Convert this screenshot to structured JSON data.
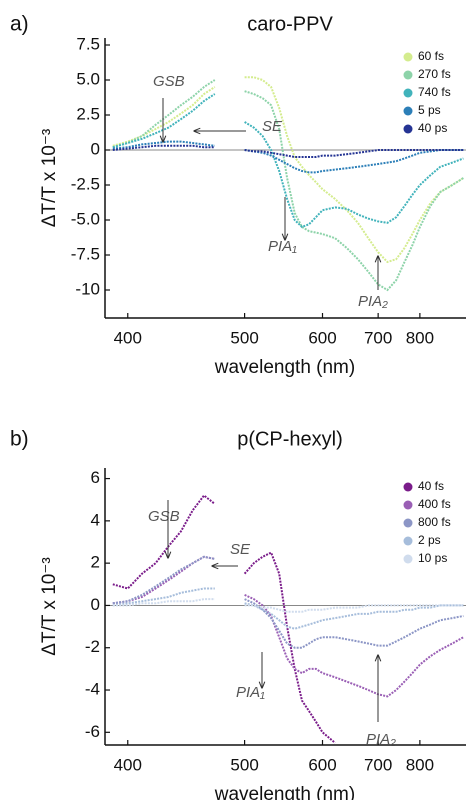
{
  "chart_data": [
    {
      "type": "line",
      "label": "a)",
      "title": "caro-PPV",
      "x_label": "wavelength (nm)",
      "y_label": "ΔT/T x 10⁻³",
      "xscale": "reciprocal",
      "xlim": [
        385,
        950
      ],
      "xticks": [
        400,
        500,
        600,
        700,
        800
      ],
      "ylim": [
        -12,
        8
      ],
      "yticks": [
        7.5,
        {
          "value": 5,
          "label": "5.0"
        },
        2.5,
        0,
        -2.5,
        {
          "value": -5,
          "label": "-5.0"
        },
        -7.5,
        -10
      ],
      "legend": "top-right",
      "zero_line": true,
      "annotations": [
        "GSB",
        "SE",
        "PIA₁",
        "PIA₂"
      ],
      "x": [
        390,
        400,
        410,
        420,
        430,
        440,
        450,
        460,
        470,
        480,
        490,
        500,
        510,
        520,
        530,
        540,
        550,
        560,
        570,
        580,
        590,
        600,
        620,
        640,
        660,
        680,
        700,
        720,
        740,
        760,
        780,
        800,
        830,
        860,
        900,
        940
      ],
      "series": [
        {
          "name": "60 fs",
          "color": "#d4ec8e",
          "values": [
            0.3,
            0.6,
            1,
            1.5,
            2,
            2.6,
            3.2,
            4,
            4.5,
            null,
            null,
            5.2,
            5.2,
            5,
            4.5,
            3,
            1,
            -0.5,
            -1.2,
            -1.8,
            -2.3,
            -2.8,
            -3.5,
            -4.3,
            -5.2,
            -6.3,
            -7.3,
            -8,
            -7.8,
            -7,
            -6,
            -5,
            -3.8,
            -3,
            -2.5,
            -2
          ]
        },
        {
          "name": "270 fs",
          "color": "#8dd3a9",
          "values": [
            0.2,
            0.5,
            1,
            1.8,
            2.5,
            3.2,
            3.8,
            4.5,
            5,
            null,
            null,
            4.2,
            4,
            3.7,
            3.2,
            1.5,
            -2,
            -4.5,
            -5.5,
            -5.8,
            -5.9,
            -6,
            -6.3,
            -7,
            -7.8,
            -8.7,
            -9.6,
            -10,
            -9.3,
            -8,
            -6.8,
            -5.5,
            -4,
            -3,
            -2.5,
            -2
          ]
        },
        {
          "name": "740 fs",
          "color": "#41b3bb",
          "values": [
            0.2,
            0.5,
            0.8,
            1.2,
            1.6,
            2.2,
            2.8,
            3.5,
            4,
            null,
            null,
            2,
            1.6,
            1,
            0,
            -1.5,
            -3.5,
            -5,
            -5.5,
            -5.3,
            -4.8,
            -4.3,
            -4.1,
            -4.2,
            -4.6,
            -4.9,
            -5.1,
            -5.2,
            -4.8,
            -4,
            -3.2,
            -2.5,
            -1.8,
            -1.2,
            -0.9,
            -0.6
          ]
        },
        {
          "name": "5 ps",
          "color": "#2c7fb8",
          "values": [
            0.1,
            0.2,
            0.4,
            0.5,
            0.6,
            0.6,
            0.5,
            0.4,
            0.3,
            null,
            null,
            0,
            -0.1,
            -0.2,
            -0.4,
            -0.7,
            -1,
            -1.3,
            -1.5,
            -1.6,
            -1.6,
            -1.5,
            -1.4,
            -1.3,
            -1.2,
            -1.1,
            -1,
            -0.9,
            -0.8,
            -0.6,
            -0.4,
            -0.2,
            -0.1,
            0,
            0,
            0
          ]
        },
        {
          "name": "40 ps",
          "color": "#253494",
          "values": [
            0,
            0.1,
            0.2,
            0.3,
            0.3,
            0.3,
            0.3,
            0.2,
            0.2,
            null,
            null,
            0,
            -0.1,
            -0.1,
            -0.2,
            -0.3,
            -0.4,
            -0.5,
            -0.5,
            -0.5,
            -0.5,
            -0.4,
            -0.4,
            -0.3,
            -0.2,
            -0.1,
            0,
            0,
            0,
            0,
            0,
            0,
            0,
            0,
            0,
            0
          ]
        }
      ]
    },
    {
      "type": "line",
      "label": "b)",
      "title": "p(CP-hexyl)",
      "x_label": "wavelength (nm)",
      "y_label": "ΔT/T x 10⁻³",
      "xscale": "reciprocal",
      "xlim": [
        385,
        950
      ],
      "xticks": [
        400,
        500,
        600,
        700,
        800
      ],
      "ylim": [
        -6.6,
        6.5
      ],
      "yticks": [
        6,
        4,
        2,
        0,
        -2,
        -4,
        -6
      ],
      "legend": "top-right",
      "zero_line": true,
      "annotations": [
        "GSB",
        "SE",
        "PIA₁",
        "PIA₂"
      ],
      "x": [
        390,
        400,
        410,
        420,
        430,
        440,
        450,
        460,
        470,
        480,
        490,
        500,
        510,
        520,
        530,
        540,
        550,
        560,
        570,
        580,
        590,
        600,
        620,
        640,
        660,
        680,
        700,
        720,
        740,
        760,
        780,
        800,
        830,
        860,
        900,
        940
      ],
      "series": [
        {
          "name": "40 fs",
          "color": "#7a1c8a",
          "values": [
            1,
            0.8,
            1.5,
            2,
            2.8,
            3.5,
            4.5,
            5.2,
            4.8,
            null,
            null,
            1.5,
            2,
            2.3,
            2.5,
            1.5,
            -1,
            -3,
            -4.5,
            -5,
            -5.5,
            -6,
            -6.5,
            null,
            null,
            null,
            null,
            null,
            null,
            null,
            null,
            null,
            null,
            null,
            null,
            null
          ]
        },
        {
          "name": "400 fs",
          "color": "#9a5fb5",
          "values": [
            0.1,
            0.2,
            0.4,
            0.8,
            1.2,
            1.6,
            2,
            2.3,
            2.2,
            null,
            null,
            0.5,
            0.3,
            0,
            -0.5,
            -1.5,
            -2.5,
            -3,
            -3.2,
            -3,
            -3,
            -3.2,
            -3.4,
            -3.6,
            -3.8,
            -4,
            -4.2,
            -4.3,
            -4,
            -3.6,
            -3.2,
            -2.8,
            -2.4,
            -2.1,
            -1.8,
            -1.5
          ]
        },
        {
          "name": "800 fs",
          "color": "#8c96c6",
          "values": [
            0.1,
            0.2,
            0.5,
            0.9,
            1.3,
            1.7,
            2,
            2.3,
            2.2,
            null,
            null,
            0.3,
            0.1,
            -0.2,
            -0.6,
            -1.2,
            -1.8,
            -2,
            -2,
            -1.8,
            -1.6,
            -1.5,
            -1.5,
            -1.6,
            -1.7,
            -1.8,
            -1.9,
            -1.9,
            -1.7,
            -1.5,
            -1.3,
            -1.1,
            -0.9,
            -0.7,
            -0.6,
            -0.5
          ]
        },
        {
          "name": "2 ps",
          "color": "#a6bddb",
          "values": [
            0,
            0.1,
            0.2,
            0.3,
            0.4,
            0.6,
            0.7,
            0.8,
            0.8,
            null,
            null,
            0.1,
            0,
            -0.2,
            -0.4,
            -0.7,
            -1,
            -1.1,
            -1,
            -0.9,
            -0.8,
            -0.7,
            -0.6,
            -0.5,
            -0.4,
            -0.4,
            -0.3,
            -0.3,
            -0.3,
            -0.2,
            -0.2,
            -0.1,
            -0.1,
            0,
            0,
            0
          ]
        },
        {
          "name": "10 ps",
          "color": "#d0dced",
          "values": [
            0,
            0,
            0.1,
            0.1,
            0.2,
            0.2,
            0.2,
            0.3,
            0.3,
            null,
            null,
            0,
            0,
            -0.1,
            -0.1,
            -0.2,
            -0.3,
            -0.3,
            -0.3,
            -0.2,
            -0.2,
            -0.2,
            -0.1,
            -0.1,
            -0.1,
            0,
            0,
            0,
            0,
            0,
            0,
            0,
            0,
            0,
            0,
            0
          ]
        }
      ]
    }
  ]
}
